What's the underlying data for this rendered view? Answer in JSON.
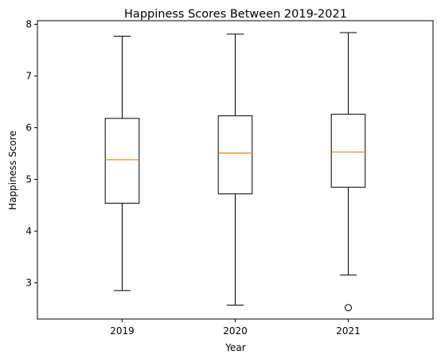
{
  "chart_data": {
    "type": "box",
    "title": "Happiness Scores Between 2019-2021",
    "xlabel": "Year",
    "ylabel": "Happiness Score",
    "ylim": [
      2.3,
      8.07
    ],
    "yticks": [
      3,
      4,
      5,
      6,
      7,
      8
    ],
    "grid": false,
    "colors": {
      "box": "#000000",
      "median": "#ff7f0e",
      "whisker": "#000000",
      "flier": "#000000"
    },
    "series": [
      {
        "category": "2019",
        "whisker_low": 2.85,
        "q1": 4.54,
        "median": 5.38,
        "q3": 6.18,
        "whisker_high": 7.77,
        "outliers": []
      },
      {
        "category": "2020",
        "whisker_low": 2.57,
        "q1": 4.72,
        "median": 5.51,
        "q3": 6.23,
        "whisker_high": 7.81,
        "outliers": []
      },
      {
        "category": "2021",
        "whisker_low": 3.15,
        "q1": 4.85,
        "median": 5.53,
        "q3": 6.26,
        "whisker_high": 7.84,
        "outliers": [
          2.52
        ]
      }
    ]
  }
}
